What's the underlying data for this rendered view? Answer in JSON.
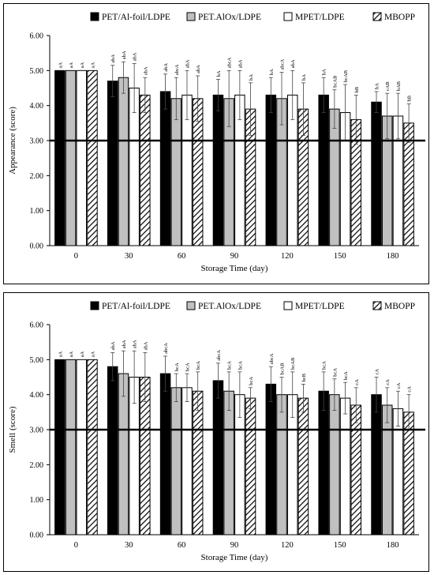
{
  "chart_data": [
    {
      "type": "bar",
      "title": "",
      "xlabel": "Storage Time (day)",
      "ylabel": "Appearance (score)",
      "ylim": [
        0,
        6
      ],
      "yticks": [
        "0.00",
        "1.00",
        "2.00",
        "3.00",
        "4.00",
        "5.00",
        "6.00"
      ],
      "reference_line": 3.0,
      "legend_position": "top",
      "categories": [
        "0",
        "30",
        "60",
        "90",
        "120",
        "150",
        "180"
      ],
      "series": [
        {
          "name": "PET/Al-foil/LDPE",
          "fill": "#000000",
          "values": [
            5.0,
            4.7,
            4.4,
            4.3,
            4.3,
            4.3,
            4.1
          ],
          "errors": [
            0.0,
            0.45,
            0.5,
            0.45,
            0.5,
            0.5,
            0.3
          ],
          "letters": [
            "aA",
            "abA",
            "abA",
            "bA",
            "bA",
            "bA",
            "bA"
          ]
        },
        {
          "name": "PET.AlOx/LDPE",
          "fill": "#c0c0c0",
          "values": [
            5.0,
            4.8,
            4.2,
            4.2,
            4.2,
            3.9,
            3.7
          ],
          "errors": [
            0.0,
            0.45,
            0.6,
            0.8,
            0.75,
            0.55,
            0.65
          ],
          "letters": [
            "aA",
            "abA",
            "abcA",
            "abcA",
            "abcA",
            "bcAB",
            "cAB"
          ]
        },
        {
          "name": "MPET/LDPE",
          "fill": "#ffffff",
          "values": [
            5.0,
            4.5,
            4.3,
            4.3,
            4.3,
            3.8,
            3.7
          ],
          "errors": [
            0.0,
            0.7,
            0.7,
            0.7,
            0.7,
            0.8,
            0.65
          ],
          "letters": [
            "aA",
            "abA",
            "abA",
            "abA",
            "abA",
            "bcAB",
            "bAB"
          ]
        },
        {
          "name": "MBOPP",
          "fill": "hatch",
          "values": [
            5.0,
            4.3,
            4.2,
            3.9,
            3.9,
            3.6,
            3.5
          ],
          "errors": [
            0.0,
            0.5,
            0.65,
            0.75,
            0.75,
            0.7,
            0.55
          ],
          "letters": [
            "aA",
            "abA",
            "abA",
            "bA",
            "bA",
            "bB",
            "bB"
          ]
        }
      ]
    },
    {
      "type": "bar",
      "title": "",
      "xlabel": "Storage Time (day)",
      "ylabel": "Smell (score)",
      "ylim": [
        0,
        6
      ],
      "yticks": [
        "0.00",
        "1.00",
        "2.00",
        "3.00",
        "4.00",
        "5.00",
        "6.00"
      ],
      "reference_line": 3.0,
      "legend_position": "top",
      "categories": [
        "0",
        "30",
        "60",
        "90",
        "120",
        "150",
        "180"
      ],
      "series": [
        {
          "name": "PET/Al-foil/LDPE",
          "fill": "#000000",
          "values": [
            5.0,
            4.8,
            4.6,
            4.4,
            4.3,
            4.1,
            4.0
          ],
          "errors": [
            0.0,
            0.4,
            0.5,
            0.5,
            0.5,
            0.55,
            0.5
          ],
          "letters": [
            "aA",
            "abA",
            "abcA",
            "abcA",
            "abcA",
            "bcA",
            "cA"
          ]
        },
        {
          "name": "PET.AlOx/LDPE",
          "fill": "#c0c0c0",
          "values": [
            5.0,
            4.6,
            4.2,
            4.1,
            4.0,
            4.0,
            3.7
          ],
          "errors": [
            0.0,
            0.65,
            0.4,
            0.55,
            0.5,
            0.45,
            0.5
          ],
          "letters": [
            "aA",
            "abA",
            "bcA",
            "bcA",
            "bcAB",
            "bcA",
            "cA"
          ]
        },
        {
          "name": "MPET/LDPE",
          "fill": "#ffffff",
          "values": [
            5.0,
            4.5,
            4.2,
            4.0,
            4.0,
            3.9,
            3.6
          ],
          "errors": [
            0.0,
            0.75,
            0.4,
            0.65,
            0.65,
            0.45,
            0.5
          ],
          "letters": [
            "aA",
            "abA",
            "bcA",
            "bcA",
            "bcAB",
            "bcA",
            "cA"
          ]
        },
        {
          "name": "MBOPP",
          "fill": "hatch",
          "values": [
            5.0,
            4.5,
            4.1,
            3.9,
            3.9,
            3.7,
            3.5
          ],
          "errors": [
            0.0,
            0.7,
            0.55,
            0.3,
            0.4,
            0.5,
            0.5
          ],
          "letters": [
            "aA",
            "abA",
            "bcA",
            "bcA",
            "bcB",
            "cA",
            "cA"
          ]
        }
      ]
    }
  ]
}
